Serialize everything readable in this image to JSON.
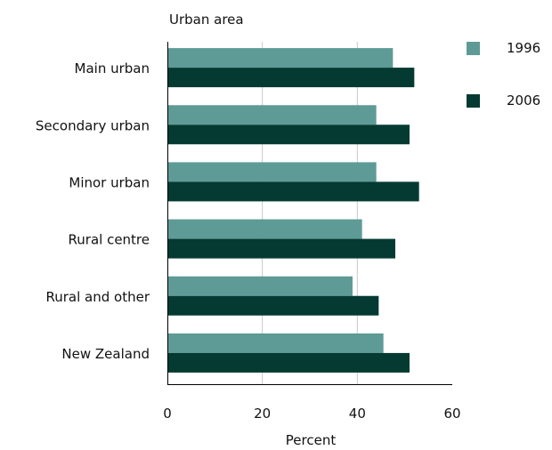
{
  "chart_data": {
    "type": "bar",
    "orientation": "horizontal",
    "title": "Urban area",
    "xlabel": "Percent",
    "ylabel": "",
    "xlim": [
      0,
      60
    ],
    "x_ticks": [
      "0",
      "20",
      "40",
      "60"
    ],
    "grid": "vertical",
    "legend": "top-right",
    "categories": [
      "Main urban",
      "Secondary urban",
      "Minor urban",
      "Rural centre",
      "Rural and other",
      "New Zealand"
    ],
    "series": [
      {
        "name": "1996",
        "color": "#5e9b96",
        "values": [
          47.5,
          44.0,
          44.0,
          41.0,
          39.0,
          45.5
        ]
      },
      {
        "name": "2006",
        "color": "#053a33",
        "values": [
          52.0,
          51.0,
          53.0,
          48.0,
          44.5,
          51.0
        ]
      }
    ]
  }
}
